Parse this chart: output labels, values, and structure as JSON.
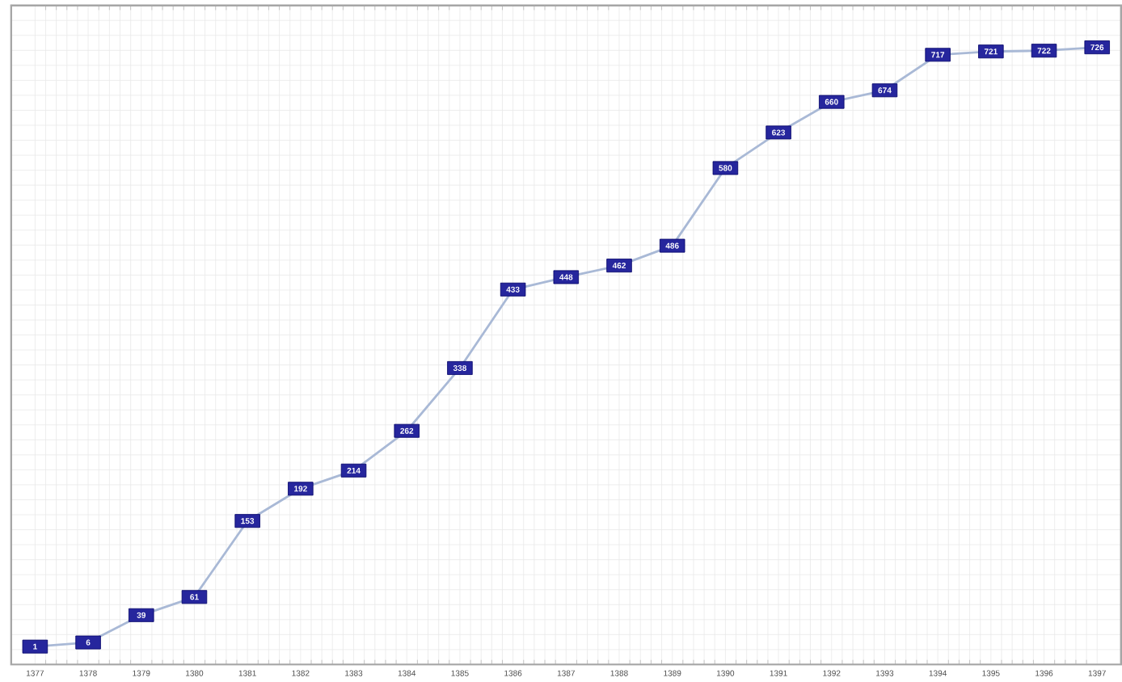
{
  "chart_data": {
    "type": "line",
    "categories": [
      "1377",
      "1378",
      "1379",
      "1380",
      "1381",
      "1382",
      "1383",
      "1384",
      "1385",
      "1386",
      "1387",
      "1388",
      "1389",
      "1390",
      "1391",
      "1392",
      "1393",
      "1394",
      "1395",
      "1396",
      "1397"
    ],
    "values": [
      1,
      6,
      39,
      61,
      153,
      192,
      214,
      262,
      338,
      433,
      448,
      462,
      486,
      580,
      623,
      660,
      674,
      717,
      721,
      722,
      726
    ],
    "color": "#a9b9d6",
    "data_labels": true,
    "grid": true,
    "tick_labels": "x",
    "marker": "square"
  }
}
